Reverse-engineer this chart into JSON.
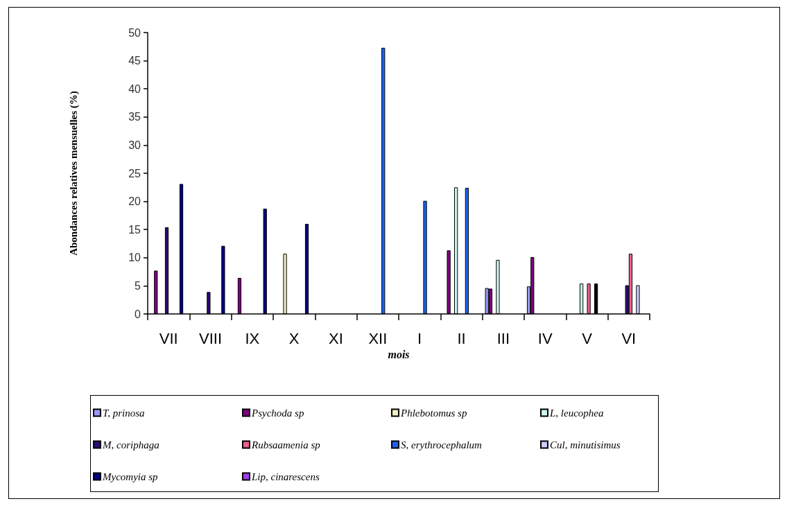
{
  "chart_data": {
    "type": "bar",
    "xlabel": "mois",
    "ylabel": "Abondances relatives mensuelles (%)",
    "categories": [
      "VII",
      "VIII",
      "IX",
      "X",
      "XI",
      "XII",
      "I",
      "II",
      "III",
      "IV",
      "V",
      "VI"
    ],
    "ylim": [
      0,
      50
    ],
    "yticks": [
      0,
      5,
      10,
      15,
      20,
      25,
      30,
      35,
      40,
      45,
      50
    ],
    "grid": false,
    "legend": "bottom",
    "series": [
      {
        "name": "T, prinosa",
        "color": "#9999ff",
        "values": [
          null,
          null,
          null,
          null,
          null,
          null,
          null,
          null,
          4.6,
          4.9,
          null,
          null
        ]
      },
      {
        "name": "Psychoda sp",
        "color": "#800080",
        "values": [
          7.7,
          null,
          6.4,
          null,
          null,
          null,
          null,
          11.3,
          4.5,
          10.1,
          null,
          null
        ]
      },
      {
        "name": "Phlebotomus sp",
        "color": "#f0f0c0",
        "values": [
          null,
          null,
          null,
          10.7,
          null,
          null,
          null,
          null,
          null,
          null,
          null,
          null
        ]
      },
      {
        "name": "L, leucophea",
        "color": "#ccf5ee",
        "values": [
          null,
          null,
          null,
          null,
          null,
          null,
          null,
          22.5,
          9.6,
          null,
          5.4,
          null
        ]
      },
      {
        "name": "M, coriphaga",
        "color": "#2b0b7a",
        "values": [
          15.4,
          3.9,
          null,
          null,
          null,
          null,
          null,
          null,
          null,
          null,
          null,
          5.1
        ]
      },
      {
        "name": "Rubsaamenia sp",
        "color": "#f0608f",
        "values": [
          null,
          null,
          null,
          null,
          null,
          null,
          null,
          null,
          null,
          null,
          5.4,
          10.7
        ]
      },
      {
        "name": "S, erythrocephalum",
        "color": "#1a62f5",
        "values": [
          null,
          null,
          null,
          null,
          null,
          47.3,
          20.1,
          22.4,
          null,
          null,
          null,
          null
        ]
      },
      {
        "name": "Cul, minutisimus",
        "color": "#ccccff",
        "colors": [
          null,
          null,
          null,
          null,
          null,
          null,
          null,
          null,
          null,
          null,
          "#000000",
          "#ccccff"
        ],
        "values": [
          null,
          null,
          null,
          null,
          null,
          null,
          null,
          null,
          null,
          null,
          5.4,
          5.1
        ]
      },
      {
        "name": "Mycomyia sp",
        "color": "#00008b",
        "values": [
          23.1,
          12.1,
          18.7,
          16.0,
          null,
          null,
          null,
          null,
          null,
          null,
          null,
          null
        ]
      },
      {
        "name": "Lip, cinarescens",
        "color": "#a040f0",
        "values": [
          null,
          null,
          null,
          null,
          null,
          null,
          null,
          null,
          null,
          null,
          null,
          null
        ]
      }
    ]
  }
}
